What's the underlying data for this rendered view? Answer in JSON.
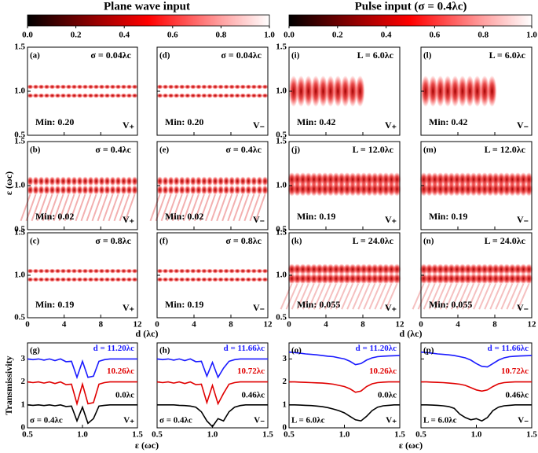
{
  "colorbars": [
    {
      "title": "Plane wave input",
      "ticks": [
        {
          "value": 0,
          "label": "0.0"
        },
        0.2,
        0.4,
        0.6,
        0.8,
        {
          "value": 1,
          "label": "1.0"
        }
      ]
    },
    {
      "title": "Pulse input (σ = 0.4λc)",
      "ticks": [
        {
          "value": 0,
          "label": "0.0"
        },
        0.2,
        0.4,
        0.6,
        0.8,
        {
          "value": 1,
          "label": "1.0"
        }
      ]
    }
  ],
  "labels": {
    "epsilon_axis": "ε (ωc)",
    "d_axis": "d (λc)",
    "transmissivity_axis": "Transmissivity"
  },
  "map_axes": {
    "xlim": [
      0,
      12
    ],
    "xticks": [
      0,
      4,
      8,
      12
    ],
    "ylim": [
      0.5,
      1.5
    ],
    "yticks": [
      {
        "value": 0.5,
        "label": "0.5"
      },
      {
        "value": 1,
        "label": "1.0"
      },
      {
        "value": 1.5,
        "label": "1.5"
      }
    ]
  },
  "line_axes": {
    "xlim": [
      0.5,
      1.5
    ],
    "xticks": [
      {
        "value": 0.5,
        "label": "0.5"
      },
      {
        "value": 1,
        "label": "1.0"
      },
      {
        "value": 1.5,
        "label": "1.5"
      }
    ],
    "ylim": [
      0,
      3.7
    ],
    "yticks": [
      0,
      1,
      2,
      3
    ]
  },
  "chart_data": [
    {
      "type": "heatmap",
      "panel": "(a)",
      "title": "σ = 0.04λc",
      "note": "Min: 0.20",
      "mode": "V₊"
    },
    {
      "type": "heatmap",
      "panel": "(b)",
      "title": "σ = 0.4λc",
      "note": "Min: 0.02",
      "mode": "V₊"
    },
    {
      "type": "heatmap",
      "panel": "(c)",
      "title": "σ = 0.8λc",
      "note": "Min: 0.19",
      "mode": "V₊"
    },
    {
      "type": "heatmap",
      "panel": "(d)",
      "title": "σ = 0.04λc",
      "note": "Min: 0.20",
      "mode": "V₋"
    },
    {
      "type": "heatmap",
      "panel": "(e)",
      "title": "σ = 0.4λc",
      "note": "Min: 0.02",
      "mode": "V₋"
    },
    {
      "type": "heatmap",
      "panel": "(f)",
      "title": "σ = 0.8λc",
      "note": "Min: 0.19",
      "mode": "V₋"
    },
    {
      "type": "heatmap",
      "panel": "(i)",
      "title": "L = 6.0λc",
      "note": "Min: 0.42",
      "mode": "V₊"
    },
    {
      "type": "heatmap",
      "panel": "(j)",
      "title": "L = 12.0λc",
      "note": "Min: 0.19",
      "mode": "V₊"
    },
    {
      "type": "heatmap",
      "panel": "(k)",
      "title": "L = 24.0λc",
      "note": "Min: 0.055",
      "mode": "V₊"
    },
    {
      "type": "heatmap",
      "panel": "(l)",
      "title": "L = 6.0λc",
      "note": "Min: 0.42",
      "mode": "V₋"
    },
    {
      "type": "heatmap",
      "panel": "(m)",
      "title": "L = 12.0λc",
      "note": "Min: 0.19",
      "mode": "V₋"
    },
    {
      "type": "heatmap",
      "panel": "(n)",
      "title": "L = 24.0λc",
      "note": "Min: 0.055",
      "mode": "V₋"
    },
    {
      "type": "line",
      "panel": "(g)",
      "note": "σ = 0.4λc",
      "mode": "V₊",
      "x": [
        0.5,
        0.55,
        0.6,
        0.65,
        0.7,
        0.75,
        0.8,
        0.85,
        0.9,
        0.95,
        1.0,
        1.05,
        1.1,
        1.15,
        1.2,
        1.25,
        1.3,
        1.35,
        1.4,
        1.45,
        1.5
      ],
      "series": [
        {
          "name": "d = 11.20λc",
          "color": "#1a1aff",
          "values": [
            3,
            2.97,
            3,
            2.95,
            3,
            2.93,
            3,
            2.88,
            2.9,
            2.2,
            2.9,
            2.2,
            2.25,
            2.9,
            2.97,
            3,
            3,
            3,
            3,
            3,
            3
          ]
        },
        {
          "name": "10.26λc",
          "color": "#e00000",
          "values": [
            2,
            1.97,
            2,
            1.95,
            2,
            1.93,
            2,
            1.88,
            1.9,
            1.05,
            1.9,
            1.05,
            1.1,
            1.9,
            1.97,
            2,
            2,
            2,
            2,
            2,
            2
          ]
        },
        {
          "name": "0.0λc",
          "color": "#000000",
          "values": [
            1,
            0.98,
            1,
            0.97,
            1,
            0.96,
            1,
            0.93,
            0.95,
            0.3,
            0.9,
            0.2,
            0.4,
            0.95,
            0.98,
            1,
            1,
            1,
            1,
            1,
            1
          ]
        }
      ]
    },
    {
      "type": "line",
      "panel": "(h)",
      "note": "σ = 0.4λc",
      "mode": "V₋",
      "x": [
        0.5,
        0.55,
        0.6,
        0.65,
        0.7,
        0.75,
        0.8,
        0.85,
        0.9,
        0.95,
        1.0,
        1.05,
        1.1,
        1.15,
        1.2,
        1.25,
        1.3,
        1.35,
        1.4,
        1.45,
        1.5
      ],
      "series": [
        {
          "name": "d = 11.66λc",
          "color": "#1a1aff",
          "values": [
            3,
            2.97,
            3,
            2.95,
            3,
            2.93,
            3,
            2.88,
            2.9,
            2.25,
            2.85,
            2.2,
            2.6,
            2.9,
            2.97,
            3,
            3,
            3,
            3,
            3,
            3
          ]
        },
        {
          "name": "10.72λc",
          "color": "#e00000",
          "values": [
            2,
            1.97,
            2,
            1.95,
            2,
            1.93,
            2,
            1.88,
            1.9,
            1.1,
            1.85,
            1.05,
            1.5,
            1.9,
            1.97,
            2,
            2,
            2,
            2,
            2,
            2
          ]
        },
        {
          "name": "0.46λc",
          "color": "#000000",
          "values": [
            1,
            1,
            1,
            1,
            0.98,
            0.97,
            0.95,
            0.9,
            0.7,
            0.3,
            0.05,
            0.4,
            0.3,
            0.7,
            0.9,
            0.97,
            1,
            1,
            1,
            1,
            1
          ]
        }
      ]
    },
    {
      "type": "line",
      "panel": "(o)",
      "note": "L = 6.0λc",
      "mode": "V₊",
      "x": [
        0.5,
        0.55,
        0.6,
        0.65,
        0.7,
        0.75,
        0.8,
        0.85,
        0.9,
        0.95,
        1.0,
        1.05,
        1.1,
        1.15,
        1.2,
        1.25,
        1.3,
        1.35,
        1.4,
        1.45,
        1.5
      ],
      "series": [
        {
          "name": "d = 11.20λc",
          "color": "#1a1aff",
          "values": [
            3.3,
            3.28,
            3.25,
            3.22,
            3.2,
            3.18,
            3.15,
            3.12,
            3.1,
            3.05,
            3,
            2.9,
            2.75,
            2.8,
            2.95,
            3.05,
            3.1,
            3.12,
            3.13,
            3.14,
            3.15
          ]
        },
        {
          "name": "10.26λc",
          "color": "#e00000",
          "values": [
            2,
            2,
            1.99,
            1.98,
            1.97,
            1.96,
            1.95,
            1.93,
            1.9,
            1.85,
            1.8,
            1.7,
            1.55,
            1.6,
            1.8,
            1.92,
            1.97,
            1.99,
            2,
            2,
            2
          ]
        },
        {
          "name": "0.0λc",
          "color": "#000000",
          "values": [
            1,
            1,
            0.99,
            0.98,
            0.97,
            0.95,
            0.92,
            0.88,
            0.82,
            0.75,
            0.65,
            0.5,
            0.35,
            0.3,
            0.5,
            0.75,
            0.9,
            0.96,
            0.98,
            1,
            1
          ]
        }
      ]
    },
    {
      "type": "line",
      "panel": "(p)",
      "note": "L = 6.0λc",
      "mode": "V₋",
      "x": [
        0.5,
        0.55,
        0.6,
        0.65,
        0.7,
        0.75,
        0.8,
        0.85,
        0.9,
        0.95,
        1.0,
        1.05,
        1.1,
        1.15,
        1.2,
        1.25,
        1.3,
        1.35,
        1.4,
        1.45,
        1.5
      ],
      "series": [
        {
          "name": "d = 11.66λc",
          "color": "#1a1aff",
          "values": [
            3.3,
            3.28,
            3.25,
            3.22,
            3.2,
            3.18,
            3.15,
            3.1,
            3.05,
            2.95,
            2.8,
            2.68,
            2.65,
            2.8,
            2.95,
            3.05,
            3.1,
            3.12,
            3.13,
            3.14,
            3.15
          ]
        },
        {
          "name": "10.72λc",
          "color": "#e00000",
          "values": [
            2,
            2,
            1.99,
            1.98,
            1.97,
            1.95,
            1.93,
            1.9,
            1.85,
            1.75,
            1.65,
            1.6,
            1.65,
            1.8,
            1.92,
            1.97,
            1.99,
            2,
            2,
            2,
            2
          ]
        },
        {
          "name": "0.46λc",
          "color": "#000000",
          "values": [
            1,
            1,
            0.99,
            0.98,
            0.96,
            0.93,
            0.85,
            0.6,
            0.45,
            0.35,
            0.4,
            0.3,
            0.45,
            0.75,
            0.9,
            0.96,
            0.98,
            1,
            1,
            1,
            1
          ]
        }
      ]
    }
  ]
}
